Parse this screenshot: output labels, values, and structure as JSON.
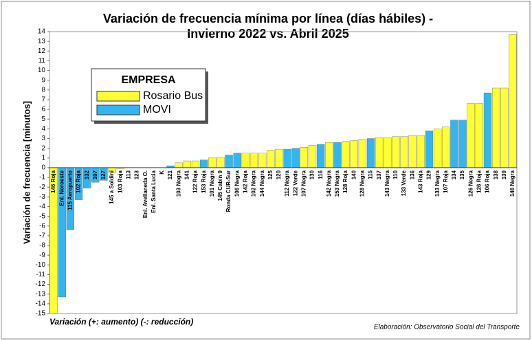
{
  "chart_data": {
    "type": "bar",
    "title": "Variación de frecuencia mínima por línea (días hábiles)  -",
    "subtitle": "Invierno 2022 vs. Abril 2025",
    "y_label": "Variación de frecuencia [minutos]",
    "legend_title": "EMPRESA",
    "note": "Variación (+: aumento) (-: reducción)",
    "source": "Elaboración: Observatorio Social del Transporte",
    "categories": [
      "146 Roja",
      "Enl. Noroeste",
      "115 Aeropuerto",
      "102 Roja",
      "132",
      "107",
      "127",
      "145 a Soldini",
      "103 Roja",
      "113",
      "123",
      "Enl. Avellaneda O.",
      "Enl. Santa Lucia",
      "K",
      "121",
      "103 Negra",
      "141",
      "122 Roja",
      "153 Roja",
      "101 Negra",
      "145 Cabín 9",
      "Ronda CUR-Sur",
      "106 Negra",
      "142 Roja",
      "102 Negra",
      "144 Negra",
      "125",
      "120",
      "112 Negra",
      "122 Verde",
      "107 Negra",
      "130",
      "116",
      "142 Negra",
      "153 Negra",
      "128 Roja",
      "140",
      "128 Negra",
      "115",
      "137",
      "143 Negra",
      "110",
      "133 Verde",
      "136",
      "143 Roja",
      "129",
      "133 Negra",
      "107 Roja",
      "134",
      "135",
      "126 Negra",
      "126 Roja",
      "106 Roja",
      "138",
      "139",
      "146 Negra"
    ],
    "series": [
      {
        "name": "Rosario Bus",
        "color": "#ffff33",
        "values": [
          -15,
          null,
          null,
          null,
          null,
          null,
          null,
          -0.5,
          -0.1,
          0,
          0,
          0,
          0,
          0,
          null,
          0.5,
          0.7,
          0.7,
          null,
          1.0,
          1.1,
          null,
          null,
          1.5,
          1.5,
          1.5,
          1.8,
          1.9,
          null,
          null,
          2.1,
          2.3,
          null,
          2.6,
          null,
          2.7,
          2.8,
          2.9,
          null,
          3.1,
          3.1,
          3.2,
          3.2,
          3.3,
          3.3,
          null,
          4.0,
          4.2,
          null,
          null,
          6.6,
          6.6,
          null,
          8.2,
          8.2,
          13.7
        ]
      },
      {
        "name": "MOVI",
        "color": "#33b5f0",
        "values": [
          null,
          -13.3,
          -6.4,
          -3.3,
          -2.1,
          -1.5,
          -1.3,
          null,
          null,
          null,
          null,
          null,
          null,
          null,
          0.2,
          null,
          null,
          null,
          0.8,
          null,
          null,
          1.3,
          1.5,
          null,
          null,
          null,
          null,
          null,
          1.9,
          2.0,
          null,
          null,
          2.4,
          null,
          2.6,
          null,
          null,
          null,
          3.0,
          null,
          null,
          null,
          null,
          null,
          null,
          3.8,
          null,
          null,
          4.9,
          4.9,
          null,
          null,
          7.7,
          null,
          null,
          null
        ]
      }
    ],
    "ylim": [
      -15,
      14
    ],
    "yticks": [
      -15,
      -14,
      -13,
      -12,
      -11,
      -10,
      -9,
      -8,
      -7,
      -6,
      -5,
      -4,
      -3,
      -2,
      -1,
      0,
      1,
      2,
      3,
      4,
      5,
      6,
      7,
      8,
      9,
      10,
      11,
      12,
      13,
      14
    ],
    "grid": false
  }
}
